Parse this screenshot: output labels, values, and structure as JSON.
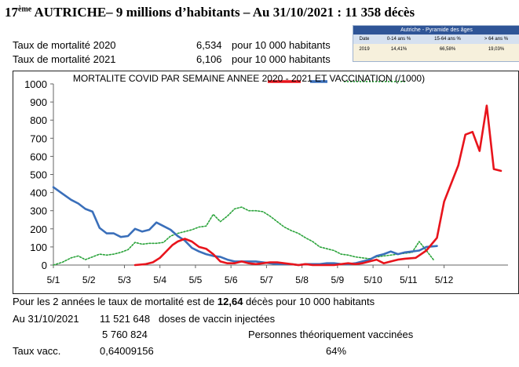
{
  "header": {
    "rank": "17",
    "rank_suffix": "ème",
    "title": " AUTRICHE– 9 millions d’habitants – Au 31/10/2021 : 11 358 décès"
  },
  "rates": [
    {
      "label": "Taux de mortalité 2020",
      "value": "6,534",
      "unit": "pour 10 000 habitants"
    },
    {
      "label": "Taux de mortalité 2021",
      "value": "6,106",
      "unit": "pour 10 000 habitants"
    }
  ],
  "pyramid": {
    "title": "Autriche - Pyramide des âges",
    "columns": [
      "Date",
      "0-14 ans %",
      "15-64 ans %",
      "> 64 ans %"
    ],
    "row": [
      "2019",
      "14,41%",
      "66,58%",
      "19,03%"
    ]
  },
  "chart_data": {
    "type": "line",
    "title": "MORTALITE COVID PAR SEMAINE ANNEE 2020 - 2021 ET VACCINATION (/1000)",
    "ylim": [
      0,
      1000
    ],
    "yticks": [
      0,
      100,
      200,
      300,
      400,
      500,
      600,
      700,
      800,
      900,
      1000
    ],
    "xticks": [
      "5/1",
      "5/2",
      "5/3",
      "5/4",
      "5/5",
      "5/6",
      "5/7",
      "5/8",
      "5/9",
      "5/10",
      "5/11",
      "5/12"
    ],
    "xlim": [
      0,
      12.8
    ],
    "grid": false,
    "series": [
      {
        "key": "red",
        "color": "#e8141c",
        "x": [
          2.3,
          2.6,
          2.8,
          3.0,
          3.2,
          3.35,
          3.5,
          3.7,
          3.9,
          4.1,
          4.3,
          4.5,
          4.7,
          4.9,
          5.1,
          5.3,
          5.5,
          5.7,
          5.9,
          6.1,
          6.3,
          6.5,
          6.7,
          6.9,
          7.1,
          7.3,
          7.5,
          7.7,
          7.9,
          8.1,
          8.3,
          8.5,
          8.7,
          8.9,
          9.1,
          9.3,
          9.5,
          9.7,
          9.9,
          10.2,
          10.5,
          10.8,
          11.0,
          11.2,
          11.4,
          11.6,
          11.8,
          12.0,
          12.2,
          12.4,
          12.6
        ],
        "y": [
          0,
          5,
          15,
          40,
          80,
          110,
          130,
          145,
          130,
          100,
          90,
          60,
          20,
          10,
          10,
          20,
          10,
          5,
          10,
          15,
          15,
          10,
          5,
          0,
          5,
          0,
          0,
          0,
          0,
          5,
          10,
          5,
          10,
          20,
          30,
          10,
          20,
          30,
          35,
          40,
          80,
          150,
          350,
          450,
          550,
          720,
          735,
          630,
          880,
          530,
          520
        ]
      },
      {
        "key": "blue",
        "color": "#3a6fba",
        "x": [
          0,
          0.25,
          0.5,
          0.7,
          0.9,
          1.1,
          1.3,
          1.5,
          1.7,
          1.9,
          2.1,
          2.3,
          2.5,
          2.7,
          2.9,
          3.1,
          3.3,
          3.5,
          3.7,
          3.9,
          4.1,
          4.3,
          4.5,
          4.7,
          4.9,
          5.1,
          5.3,
          5.5,
          5.7,
          5.9,
          6.1,
          6.3,
          6.5,
          6.7,
          6.9,
          7.1,
          7.3,
          7.5,
          7.7,
          7.9,
          8.1,
          8.3,
          8.5,
          8.7,
          8.9,
          9.1,
          9.3,
          9.5,
          9.7,
          9.9,
          10.1,
          10.3,
          10.5,
          10.8
        ],
        "y": [
          430,
          395,
          360,
          340,
          310,
          295,
          205,
          175,
          175,
          155,
          160,
          200,
          185,
          195,
          235,
          215,
          195,
          160,
          135,
          95,
          75,
          60,
          50,
          45,
          30,
          20,
          20,
          20,
          20,
          15,
          10,
          5,
          5,
          5,
          0,
          5,
          5,
          5,
          10,
          10,
          5,
          5,
          10,
          20,
          30,
          50,
          60,
          75,
          60,
          70,
          75,
          80,
          100,
          105
        ]
      },
      {
        "key": "green",
        "color": "#2aa33a",
        "dashed": true,
        "x": [
          0,
          0.25,
          0.5,
          0.7,
          0.9,
          1.1,
          1.3,
          1.5,
          1.7,
          1.9,
          2.1,
          2.3,
          2.5,
          2.7,
          2.9,
          3.1,
          3.3,
          3.5,
          3.7,
          3.9,
          4.1,
          4.3,
          4.5,
          4.7,
          4.9,
          5.1,
          5.3,
          5.5,
          5.7,
          5.9,
          6.1,
          6.3,
          6.5,
          6.7,
          6.9,
          7.1,
          7.3,
          7.5,
          7.7,
          7.9,
          8.1,
          8.3,
          8.5,
          8.7,
          8.9,
          9.1,
          9.3,
          9.5,
          9.7,
          9.9,
          10.1,
          10.3,
          10.5,
          10.7
        ],
        "y": [
          0,
          15,
          40,
          50,
          30,
          45,
          60,
          55,
          60,
          70,
          85,
          125,
          115,
          120,
          120,
          125,
          160,
          175,
          185,
          195,
          210,
          215,
          280,
          240,
          270,
          310,
          320,
          300,
          300,
          295,
          270,
          240,
          210,
          190,
          175,
          150,
          130,
          100,
          90,
          80,
          60,
          55,
          45,
          40,
          35,
          45,
          50,
          55,
          60,
          65,
          70,
          130,
          80,
          30
        ]
      }
    ]
  },
  "footer": {
    "line1_prefix": "Pour les 2 années le taux de mortalité est de ",
    "line1_value": "12,64",
    "line1_suffix": " décès pour 10 000 habitants",
    "date_label": "Au 31/10/2021",
    "doses_value": "11 521 648",
    "doses_label": "doses de vaccin injectées",
    "persons_value": "5 760 824",
    "persons_label": "Personnes théoriquement vaccinées",
    "taux_label": "Taux vacc.",
    "taux_value": "0,64009156",
    "taux_percent": "64%"
  }
}
